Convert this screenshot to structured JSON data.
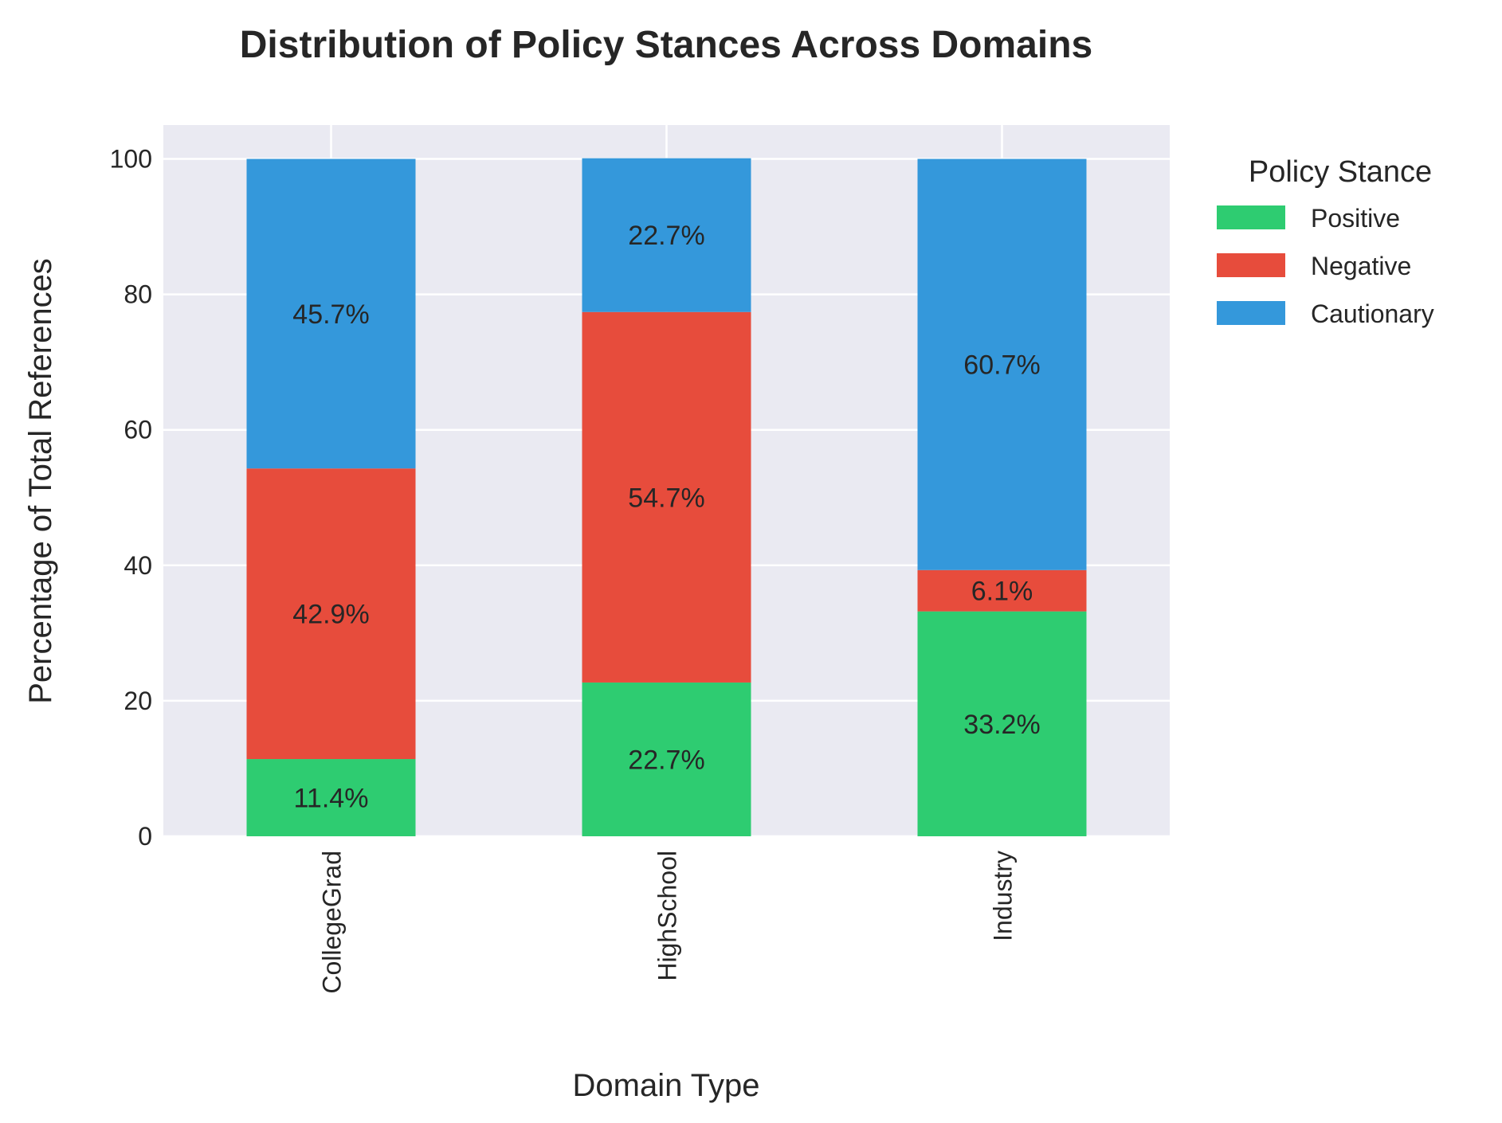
{
  "chart_data": {
    "type": "bar",
    "stacked": true,
    "title": "Distribution of Policy Stances Across Domains",
    "xlabel": "Domain Type",
    "ylabel": "Percentage of Total References",
    "categories": [
      "CollegeGrad",
      "HighSchool",
      "Industry"
    ],
    "ylim": [
      0,
      105
    ],
    "yticks": [
      0,
      20,
      40,
      60,
      80,
      100
    ],
    "grid": true,
    "legend": {
      "title": "Policy Stance",
      "placement": "outside-right-top"
    },
    "series": [
      {
        "name": "Positive",
        "color": "#2ecc71",
        "values": [
          11.4,
          22.7,
          33.2
        ],
        "labels": [
          "11.4%",
          "22.7%",
          "33.2%"
        ]
      },
      {
        "name": "Negative",
        "color": "#e74c3c",
        "values": [
          42.9,
          54.7,
          6.1
        ],
        "labels": [
          "42.9%",
          "54.7%",
          "6.1%"
        ]
      },
      {
        "name": "Cautionary",
        "color": "#3498db",
        "values": [
          45.7,
          22.7,
          60.7
        ],
        "labels": [
          "45.7%",
          "22.7%",
          "60.7%"
        ]
      }
    ],
    "plot_background": "#eaeaf2",
    "grid_color": "#ffffff"
  }
}
